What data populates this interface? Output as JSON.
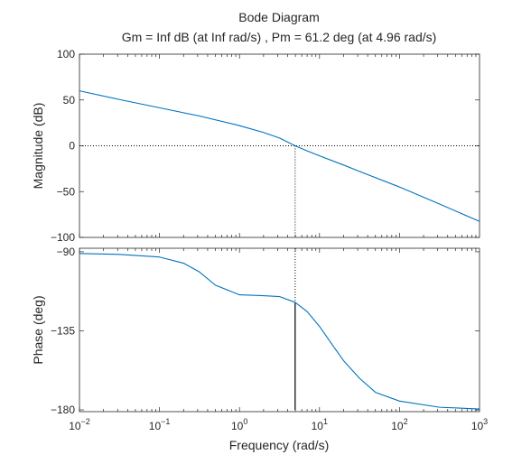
{
  "chart_data": {
    "type": "line",
    "title": "Bode Diagram",
    "subtitle": "Gm = Inf dB (at Inf rad/s) ,  Pm = 61.2 deg (at 4.96 rad/s)",
    "xlabel": "Frequency  (rad/s)",
    "x_scale": "log",
    "xlim": [
      0.01,
      1000
    ],
    "x_ticks": [
      {
        "value": 0.01,
        "base": "10",
        "exp": "-2"
      },
      {
        "value": 0.1,
        "base": "10",
        "exp": "-1"
      },
      {
        "value": 1,
        "base": "10",
        "exp": "0"
      },
      {
        "value": 10,
        "base": "10",
        "exp": "1"
      },
      {
        "value": 100,
        "base": "10",
        "exp": "2"
      },
      {
        "value": 1000,
        "base": "10",
        "exp": "3"
      }
    ],
    "line_color": "#0072bd",
    "grid": false,
    "panels": [
      {
        "ylabel": "Magnitude (dB)",
        "ylim": [
          -100,
          100
        ],
        "y_ticks": [
          100,
          50,
          0,
          -50,
          -100
        ],
        "series": [
          {
            "x": [
              0.01,
              0.0316,
              0.1,
              0.316,
              1,
              2,
              3.16,
              4.96,
              7,
              10,
              20,
              31.6,
              100,
              316,
              1000
            ],
            "values": [
              60,
              50.5,
              41.5,
              32.5,
              22,
              14.5,
              8.5,
              0,
              -5.5,
              -11,
              -21,
              -28,
              -45,
              -63.5,
              -82.5
            ]
          }
        ]
      },
      {
        "ylabel": "Phase (deg)",
        "ylim": [
          -181,
          -88
        ],
        "y_ticks": [
          -90,
          -135,
          -180
        ],
        "series": [
          {
            "x": [
              0.01,
              0.0316,
              0.1,
              0.2,
              0.316,
              0.5,
              1,
              2,
              3.16,
              4.96,
              7,
              10,
              15,
              20,
              31.6,
              50,
              100,
              316,
              1000
            ],
            "values": [
              -91,
              -91.5,
              -93,
              -96.5,
              -101.5,
              -109,
              -114.5,
              -115,
              -115.5,
              -118.8,
              -124,
              -132.5,
              -144,
              -152,
              -162,
              -170,
              -175,
              -178.5,
              -179.5
            ]
          }
        ]
      }
    ],
    "margin_marker": {
      "frequency": 4.96,
      "phase": -118.8
    },
    "reference_line_color": "#000000"
  }
}
